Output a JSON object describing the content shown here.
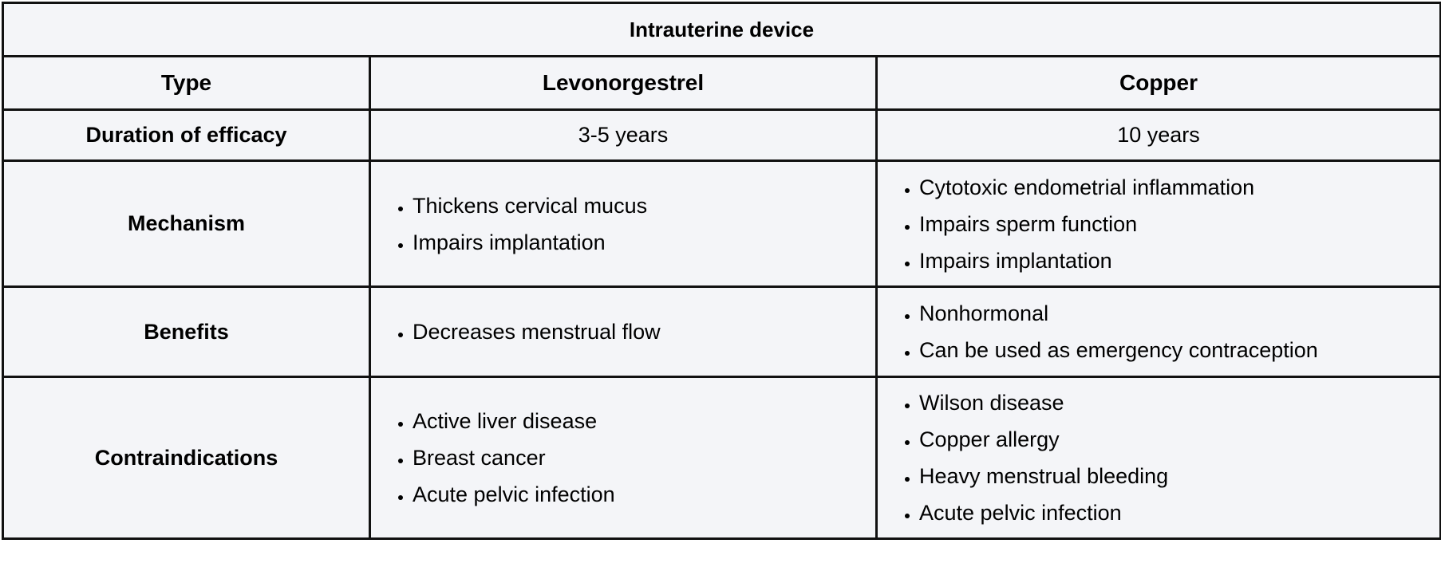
{
  "table": {
    "title": "Intrauterine device",
    "headers": {
      "type": "Type",
      "levonorgestrel": "Levonorgestrel",
      "copper": "Copper"
    },
    "rows": {
      "duration": {
        "label": "Duration of efficacy",
        "levonorgestrel": "3-5 years",
        "copper": "10 years"
      },
      "mechanism": {
        "label": "Mechanism",
        "levonorgestrel": [
          "Thickens cervical mucus",
          "Impairs implantation"
        ],
        "copper": [
          "Cytotoxic endometrial inflammation",
          "Impairs sperm function",
          "Impairs implantation"
        ]
      },
      "benefits": {
        "label": "Benefits",
        "levonorgestrel": [
          "Decreases menstrual flow"
        ],
        "copper": [
          "Nonhormonal",
          "Can be used as emergency contraception"
        ]
      },
      "contraindications": {
        "label": "Contraindications",
        "levonorgestrel": [
          "Active liver disease",
          "Breast cancer",
          "Acute pelvic infection"
        ],
        "copper": [
          "Wilson disease",
          "Copper allergy",
          "Heavy menstrual bleeding",
          "Acute pelvic infection"
        ]
      }
    }
  }
}
